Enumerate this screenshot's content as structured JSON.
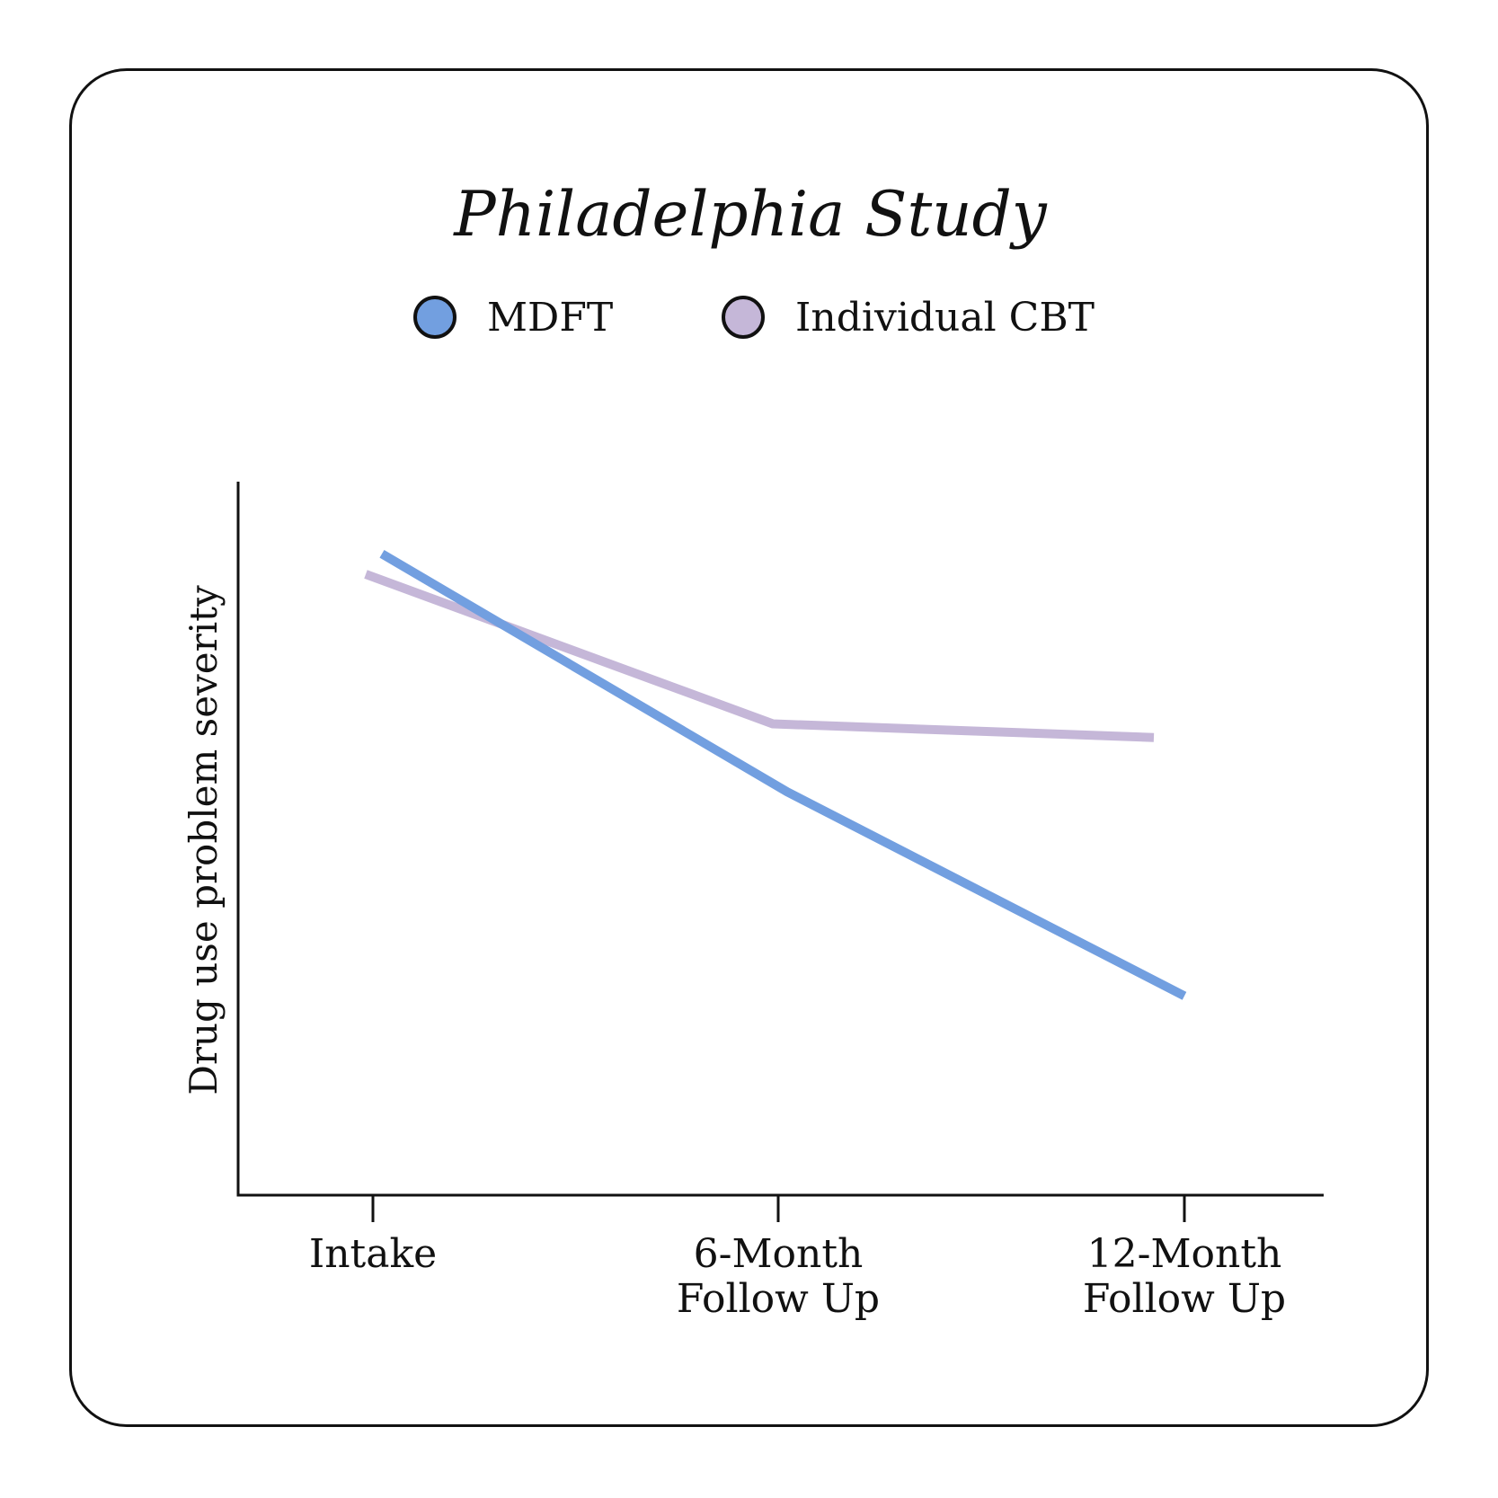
{
  "chart_data": {
    "type": "line",
    "title": "Philadelphia Study",
    "xlabel": "",
    "ylabel": "Drug use problem severity",
    "categories": [
      "Intake",
      "6-Month Follow Up",
      "12-Month Follow Up"
    ],
    "category_lines": [
      [
        "Intake"
      ],
      [
        "6-Month",
        "Follow Up"
      ],
      [
        "12-Month",
        "Follow Up"
      ]
    ],
    "ylim": [
      0,
      100
    ],
    "series": [
      {
        "name": "MDFT",
        "color": "#729fe0",
        "values": [
          89,
          54,
          24
        ]
      },
      {
        "name": "Individual CBT",
        "color": "#c5b7d8",
        "values": [
          86,
          64,
          62
        ]
      }
    ],
    "legend_position": "top-center",
    "grid": false
  }
}
